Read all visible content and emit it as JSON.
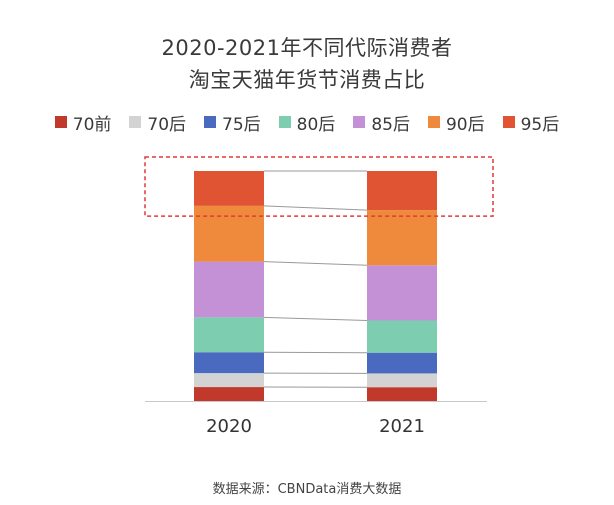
{
  "title_line1": "2020-2021年不同代际消费者",
  "title_line2": "淘宝天猫年货节消费占比",
  "source": "数据来源：CBNData消费大数据",
  "colors": {
    "70前": "#c0392b",
    "70后": "#d3d3d3",
    "75后": "#4a6abf",
    "80后": "#7dcdb0",
    "85后": "#c491d6",
    "90后": "#ef8a3c",
    "95后": "#e05433",
    "highlight_box": "#e03a3a",
    "connector": "#999999",
    "axis": "#c8c8c8"
  },
  "chart_data": {
    "type": "bar",
    "stacked": true,
    "normalized": true,
    "title": "2020-2021年不同代际消费者淘宝天猫年货节消费占比",
    "categories": [
      "2020",
      "2021"
    ],
    "series": [
      {
        "name": "70前",
        "values": [
          6,
          6
        ]
      },
      {
        "name": "70后",
        "values": [
          6,
          6
        ]
      },
      {
        "name": "75后",
        "values": [
          9,
          9
        ]
      },
      {
        "name": "80后",
        "values": [
          15,
          14
        ]
      },
      {
        "name": "85后",
        "values": [
          24,
          24
        ]
      },
      {
        "name": "90后",
        "values": [
          24,
          24
        ]
      },
      {
        "name": "95后",
        "values": [
          15,
          17
        ]
      }
    ],
    "legend_position": "top",
    "grid": false,
    "yaxis_visible": false,
    "highlight_series": "95后"
  }
}
